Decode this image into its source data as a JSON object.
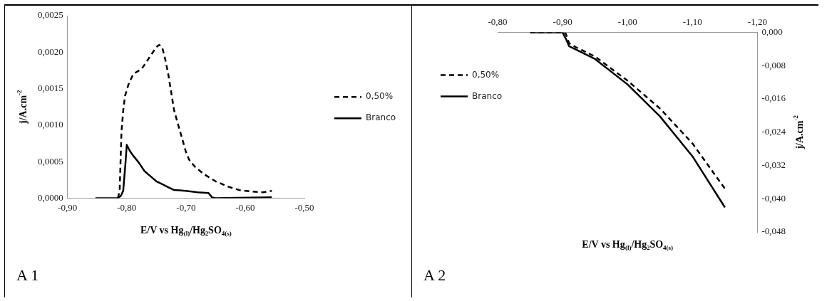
{
  "chart_data": [
    {
      "type": "line",
      "xlabel": "E/V vs Hg$_{(l)}$/Hg₂SO$_{4(s)}$",
      "ylabel": "j/A.cm$^{-2}$",
      "annotations": [
        "A 1"
      ],
      "legend": "right",
      "grid": false,
      "marker": "none",
      "xlim": [
        -0.9,
        -0.5
      ],
      "xticks": [
        {
          "value": -0.9,
          "label": "-0,90"
        },
        {
          "value": -0.8,
          "label": "-0,80"
        },
        {
          "value": -0.7,
          "label": "-0,70"
        },
        {
          "value": -0.6,
          "label": "-0,60"
        },
        {
          "value": -0.5,
          "label": "-0,50"
        }
      ],
      "ylim": [
        0,
        0.0025
      ],
      "yticks": [
        {
          "value": 0,
          "label": "0,0000"
        },
        {
          "value": 0.0005,
          "label": "0,0005"
        },
        {
          "value": 0.001,
          "label": "0,0010"
        },
        {
          "value": 0.0015,
          "label": "0,0015"
        },
        {
          "value": 0.002,
          "label": "0,0020"
        },
        {
          "value": 0.0025,
          "label": "0,0025"
        }
      ],
      "series": [
        {
          "name": "0,50%",
          "color": "#000000",
          "line_style": "dashed",
          "x": [
            -0.815,
            -0.812,
            -0.809,
            -0.806,
            -0.803,
            -0.797,
            -0.789,
            -0.775,
            -0.768,
            -0.76,
            -0.75,
            -0.745,
            -0.74,
            -0.735,
            -0.73,
            -0.725,
            -0.72,
            -0.713,
            -0.706,
            -0.7,
            -0.695,
            -0.685,
            -0.67,
            -0.65,
            -0.63,
            -0.61,
            -0.59,
            -0.57,
            -0.555
          ],
          "values": [
            0,
            0.0001,
            0.0009,
            0.0012,
            0.0014,
            0.00156,
            0.0017,
            0.00177,
            0.00185,
            0.00195,
            0.00207,
            0.0021,
            0.00206,
            0.0019,
            0.0017,
            0.00145,
            0.0012,
            0.001,
            0.0008,
            0.00063,
            0.00053,
            0.00043,
            0.00033,
            0.00023,
            0.00016,
            0.00011,
            9e-05,
            8e-05,
            0.0001
          ]
        },
        {
          "name": "Branco",
          "color": "#000000",
          "line_style": "solid",
          "x": [
            -0.853,
            -0.815,
            -0.81,
            -0.806,
            -0.802,
            -0.8,
            -0.795,
            -0.79,
            -0.78,
            -0.77,
            -0.76,
            -0.75,
            -0.74,
            -0.73,
            -0.72,
            -0.7,
            -0.68,
            -0.662,
            -0.656,
            -0.65,
            -0.555
          ],
          "values": [
            0,
            0,
            3e-05,
            0.0001,
            0.0005,
            0.00073,
            0.00065,
            0.00059,
            0.00049,
            0.00037,
            0.0003,
            0.00023,
            0.00019,
            0.00015,
            0.00011,
            0.0001,
            8e-05,
            7e-05,
            1e-05,
            0,
            1e-05
          ]
        }
      ]
    },
    {
      "type": "line",
      "xlabel": "E/V vs Hg$_{(l)}$/Hg₂SO$_{4(s)}$",
      "ylabel": "j/A.cm$^{-2}$",
      "annotations": [
        "A 2"
      ],
      "legend": "top left",
      "grid": false,
      "marker": "none",
      "xlim": [
        -0.8,
        -1.2
      ],
      "xticks": [
        {
          "value": -0.8,
          "label": "-0,80"
        },
        {
          "value": -0.9,
          "label": "-0,90"
        },
        {
          "value": -1.0,
          "label": "-1,00"
        },
        {
          "value": -1.1,
          "label": "-1,10"
        },
        {
          "value": -1.2,
          "label": "-1,20"
        }
      ],
      "ylim": [
        -0.048,
        0
      ],
      "yticks": [
        {
          "value": 0,
          "label": "0,000"
        },
        {
          "value": -0.008,
          "label": "-0,008"
        },
        {
          "value": -0.016,
          "label": "-0,016"
        },
        {
          "value": -0.024,
          "label": "-0,024"
        },
        {
          "value": -0.032,
          "label": "-0,032"
        },
        {
          "value": -0.04,
          "label": "-0,040"
        },
        {
          "value": -0.048,
          "label": "-0,048"
        }
      ],
      "series": [
        {
          "name": "0,50%",
          "color": "#000000",
          "line_style": "dashed",
          "x": [
            -0.85,
            -0.9,
            -0.905,
            -0.91,
            -0.92,
            -0.95,
            -1.0,
            -1.05,
            -1.1,
            -1.15
          ],
          "values": [
            0,
            0,
            -0.0003,
            -0.0026,
            -0.0035,
            -0.0058,
            -0.0116,
            -0.0183,
            -0.0267,
            -0.0376
          ]
        },
        {
          "name": "Branco",
          "color": "#000000",
          "line_style": "solid",
          "x": [
            -0.85,
            -0.9,
            -0.905,
            -0.91,
            -0.95,
            -1.0,
            -1.05,
            -1.1,
            -1.15
          ],
          "values": [
            0,
            0,
            -0.0015,
            -0.0033,
            -0.0064,
            -0.0125,
            -0.0202,
            -0.0298,
            -0.0421
          ]
        }
      ]
    }
  ]
}
